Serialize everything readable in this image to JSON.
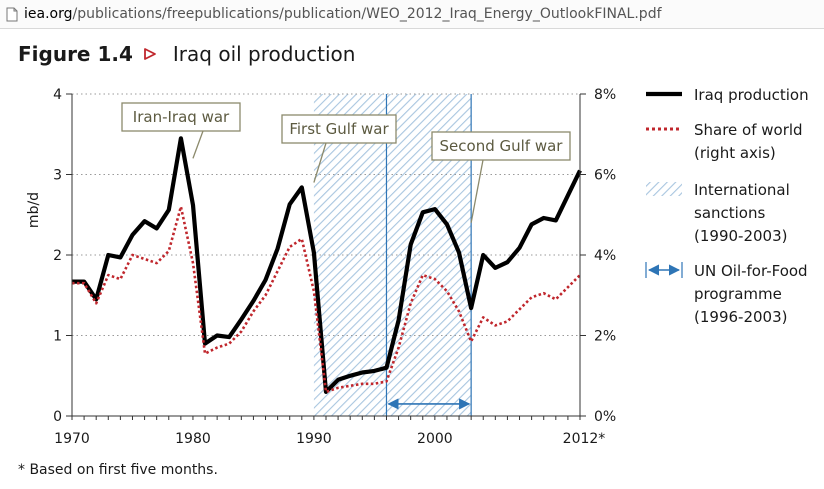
{
  "browser": {
    "url_domain": "iea.org",
    "url_path": "/publications/freepublications/publication/WEO_2012_Iraq_Energy_OutlookFINAL.pdf",
    "page_icon": "document-icon"
  },
  "figure": {
    "number": "Figure 1.4",
    "title": "Iraq oil production",
    "marker_icon": "triangle-right-icon",
    "footnote": "* Based on first five months."
  },
  "colors": {
    "production": "#000000",
    "share": "#c0272d",
    "sanctions": "#9dbedb",
    "oil_for_food": "#2e75b6",
    "callout_border": "#8c8a6c",
    "callout_text": "#5c5a40"
  },
  "chart_data": {
    "type": "line",
    "ylabel": "mb/d",
    "x_ticks": [
      "1970",
      "1980",
      "1990",
      "2000",
      "2012*"
    ],
    "y_ticks_left": [
      "0",
      "1",
      "2",
      "3",
      "4"
    ],
    "y_ticks_right": [
      "0%",
      "2%",
      "4%",
      "6%",
      "8%"
    ],
    "xlim": [
      1970,
      2012
    ],
    "ylim_left": [
      0,
      4
    ],
    "ylim_right": [
      0,
      8
    ],
    "grid": "horizontal dotted",
    "legend_position": "right",
    "series": [
      {
        "name": "Iraq production",
        "axis": "left",
        "style": "solid",
        "x": [
          1970,
          1971,
          1972,
          1973,
          1974,
          1975,
          1976,
          1977,
          1978,
          1979,
          1980,
          1981,
          1982,
          1983,
          1984,
          1985,
          1986,
          1987,
          1988,
          1989,
          1990,
          1991,
          1992,
          1993,
          1994,
          1995,
          1996,
          1997,
          1998,
          1999,
          2000,
          2001,
          2002,
          2003,
          2004,
          2005,
          2006,
          2007,
          2008,
          2009,
          2010,
          2011,
          2012
        ],
        "y": [
          1.67,
          1.67,
          1.45,
          2.0,
          1.97,
          2.25,
          2.42,
          2.33,
          2.56,
          3.45,
          2.62,
          0.9,
          1.0,
          0.98,
          1.2,
          1.43,
          1.69,
          2.08,
          2.63,
          2.84,
          2.03,
          0.3,
          0.45,
          0.5,
          0.54,
          0.56,
          0.6,
          1.19,
          2.13,
          2.53,
          2.57,
          2.38,
          2.03,
          1.34,
          2.0,
          1.84,
          1.91,
          2.09,
          2.38,
          2.46,
          2.43,
          2.74,
          3.05
        ]
      },
      {
        "name": "Share of world (right axis)",
        "axis": "right",
        "style": "dotted",
        "x": [
          1970,
          1971,
          1972,
          1973,
          1974,
          1975,
          1976,
          1977,
          1978,
          1979,
          1980,
          1981,
          1982,
          1983,
          1984,
          1985,
          1986,
          1987,
          1988,
          1989,
          1990,
          1991,
          1992,
          1993,
          1994,
          1995,
          1996,
          1997,
          1998,
          1999,
          2000,
          2001,
          2002,
          2003,
          2004,
          2005,
          2006,
          2007,
          2008,
          2009,
          2010,
          2011,
          2012
        ],
        "y": [
          3.3,
          3.3,
          2.8,
          3.5,
          3.4,
          4.0,
          3.9,
          3.8,
          4.1,
          5.2,
          3.8,
          1.55,
          1.7,
          1.8,
          2.1,
          2.6,
          3.0,
          3.6,
          4.2,
          4.4,
          3.1,
          0.6,
          0.7,
          0.75,
          0.8,
          0.8,
          0.86,
          1.7,
          2.8,
          3.5,
          3.4,
          3.1,
          2.6,
          1.85,
          2.45,
          2.25,
          2.35,
          2.65,
          2.95,
          3.05,
          2.9,
          3.2,
          3.5
        ]
      }
    ],
    "bands": [
      {
        "name": "International sanctions (1990-2003)",
        "from": 1990,
        "to": 2003,
        "style": "hatched"
      }
    ],
    "arrows": [
      {
        "name": "UN Oil-for-Food programme (1996-2003)",
        "from": 1996,
        "to": 2003,
        "y": 0.15
      }
    ],
    "annotations": [
      {
        "text": "Iran-Iraq war",
        "points_to": [
          1980,
          3.2
        ]
      },
      {
        "text": "First Gulf war",
        "points_to": [
          1990,
          2.9
        ]
      },
      {
        "text": "Second Gulf war",
        "points_to": [
          2003,
          2.4
        ]
      }
    ],
    "legend": [
      {
        "label_lines": [
          "Iraq production"
        ],
        "swatch": "solid-line"
      },
      {
        "label_lines": [
          "Share of world",
          "(right axis)"
        ],
        "swatch": "dotted-line"
      },
      {
        "label_lines": [
          "International",
          "sanctions",
          "(1990-2003)"
        ],
        "swatch": "hatch"
      },
      {
        "label_lines": [
          "UN Oil-for-Food",
          "programme",
          "(1996-2003)"
        ],
        "swatch": "double-arrow"
      }
    ]
  }
}
